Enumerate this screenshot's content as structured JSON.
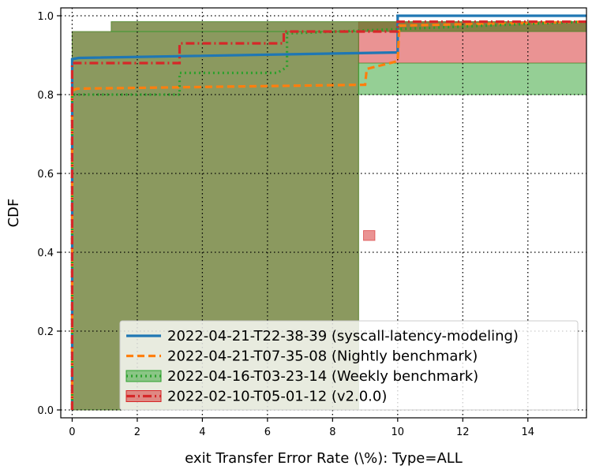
{
  "chart_data": {
    "type": "line",
    "title": "",
    "xlabel": "exit Transfer Error Rate (\\%): Type=ALL",
    "ylabel": "CDF",
    "xlim": [
      -0.35,
      15.8
    ],
    "ylim": [
      -0.02,
      1.02
    ],
    "xticks": [
      0,
      2,
      4,
      6,
      8,
      10,
      12,
      14
    ],
    "yticks": [
      0.0,
      0.2,
      0.4,
      0.6,
      0.8,
      1.0
    ],
    "xtick_labels": [
      "0",
      "2",
      "4",
      "6",
      "8",
      "10",
      "12",
      "14"
    ],
    "ytick_labels": [
      "0.0",
      "0.2",
      "0.4",
      "0.6",
      "0.8",
      "1.0"
    ],
    "grid": true,
    "legend_position": "lower-right",
    "series": [
      {
        "name": "2022-04-21-T22-38-39 (syscall-latency-modeling)",
        "color": "#1f77b4",
        "style": "solid",
        "x": [
          0,
          0,
          0.2,
          10.0,
          10.0,
          15.8
        ],
        "y": [
          0,
          0.89,
          0.893,
          0.907,
          1.0,
          1.0
        ]
      },
      {
        "name": "2022-04-21-T07-35-08 (Nightly benchmark)",
        "color": "#ff7f0e",
        "style": "dashed",
        "x": [
          0,
          0,
          0.15,
          9.0,
          9.05,
          10.0,
          10.05,
          15.8
        ],
        "y": [
          0,
          0.81,
          0.815,
          0.825,
          0.865,
          0.885,
          0.975,
          0.985
        ]
      },
      {
        "name": "2022-04-16-T03-23-14 (Weekly benchmark)",
        "color": "#2ca02c",
        "style": "dotted",
        "x": [
          0,
          0,
          3.3,
          3.3,
          6.3,
          6.6,
          6.6,
          15.8
        ],
        "y": [
          0,
          0.8,
          0.8,
          0.855,
          0.855,
          0.87,
          0.955,
          0.985
        ]
      },
      {
        "name": "2022-02-10-T05-01-12 (v2.0.0)",
        "color": "#d62728",
        "style": "dashdot",
        "x": [
          0,
          0,
          3.3,
          3.3,
          6.5,
          6.5,
          10.0,
          10.0,
          15.8
        ],
        "y": [
          0,
          0.88,
          0.88,
          0.93,
          0.93,
          0.96,
          0.96,
          0.985,
          0.985
        ]
      }
    ],
    "bands": [
      {
        "series": "2022-02-10-T05-01-12 (v2.0.0)",
        "color": "#d62728",
        "x0": 0,
        "x1": 8.8,
        "y0": 0,
        "y1": 0.96
      },
      {
        "series": "2022-02-10-T05-01-12 (v2.0.0)",
        "color": "#d62728",
        "x0": 8.8,
        "x1": 15.8,
        "y0": 0.88,
        "y1": 0.985
      },
      {
        "series": "2022-02-10-T05-01-12 (v2.0.0)",
        "color": "#d62728",
        "x0": 1.2,
        "x1": 15.8,
        "y0": 0.96,
        "y1": 0.985
      },
      {
        "series": "2022-04-16-T03-23-14 (Weekly benchmark)",
        "color": "#2ca02c",
        "x0": 0,
        "x1": 8.8,
        "y0": 0,
        "y1": 0.96
      },
      {
        "series": "2022-04-16-T03-23-14 (Weekly benchmark)",
        "color": "#2ca02c",
        "x0": 8.8,
        "x1": 15.8,
        "y0": 0.8,
        "y1": 0.88
      },
      {
        "series": "2022-04-16-T03-23-14 (Weekly benchmark)",
        "color": "#2ca02c",
        "x0": 1.2,
        "x1": 15.8,
        "y0": 0.96,
        "y1": 0.985
      },
      {
        "series": "2022-02-10-T05-01-12 (v2.0.0)",
        "color": "#d62728",
        "x0": 8.95,
        "x1": 9.3,
        "y0": 0.43,
        "y1": 0.455
      }
    ]
  }
}
